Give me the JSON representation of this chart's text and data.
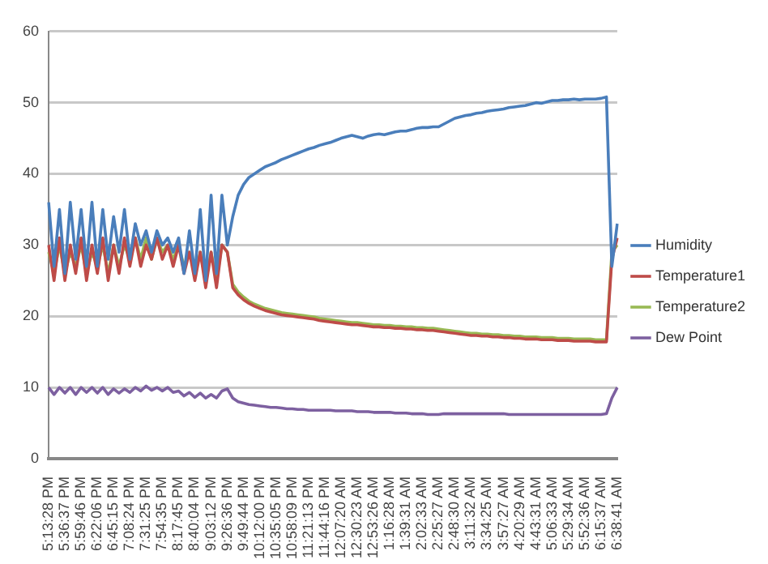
{
  "chart_data": {
    "type": "line",
    "categories": [
      "5:13:28 PM",
      null,
      null,
      "5:36:37 PM",
      null,
      null,
      "5:59:46 PM",
      null,
      null,
      "6:22:06 PM",
      null,
      null,
      "6:45:15 PM",
      null,
      null,
      "7:08:24 PM",
      null,
      null,
      "7:31:25 PM",
      null,
      null,
      "7:54:35 PM",
      null,
      null,
      "8:17:45 PM",
      null,
      null,
      "8:40:04 PM",
      null,
      null,
      "9:03:12 PM",
      null,
      null,
      "9:26:36 PM",
      null,
      null,
      "9:49:44 PM",
      null,
      null,
      "10:12:00 PM",
      null,
      null,
      "10:35:05 PM",
      null,
      null,
      "10:58:09 PM",
      null,
      null,
      "11:21:13 PM",
      null,
      null,
      "11:44:16 PM",
      null,
      null,
      "12:07:20 AM",
      null,
      null,
      "12:30:23 AM",
      null,
      null,
      "12:53:26 AM",
      null,
      null,
      "1:16:28 AM",
      null,
      null,
      "1:39:31 AM",
      null,
      null,
      "2:02:33 AM",
      null,
      null,
      "2:25:27 AM",
      null,
      null,
      "2:48:30 AM",
      null,
      null,
      "3:11:32 AM",
      null,
      null,
      "3:34:25 AM",
      null,
      null,
      "3:57:27 AM",
      null,
      null,
      "4:20:29 AM",
      null,
      null,
      "4:43:31 AM",
      null,
      null,
      "5:06:33 AM",
      null,
      null,
      "5:29:34 AM",
      null,
      null,
      "5:52:36 AM",
      null,
      null,
      "6:15:37 AM",
      null,
      null,
      "6:38:41 AM"
    ],
    "series": [
      {
        "name": "Humidity",
        "color": "#4a7ebb",
        "values": [
          36,
          27,
          35,
          26,
          36,
          28,
          35,
          27,
          36,
          27,
          35,
          28,
          34,
          29,
          35,
          28,
          33,
          30,
          32,
          29,
          32,
          30,
          31,
          29,
          31,
          26,
          32,
          26,
          35,
          25,
          37,
          26,
          37,
          30,
          34,
          37,
          38.5,
          39.5,
          40,
          40.5,
          41,
          41.3,
          41.6,
          42,
          42.3,
          42.6,
          42.9,
          43.2,
          43.5,
          43.7,
          44,
          44.2,
          44.4,
          44.7,
          45,
          45.2,
          45.4,
          45.2,
          45,
          45.3,
          45.5,
          45.6,
          45.5,
          45.7,
          45.9,
          46,
          46,
          46.2,
          46.4,
          46.5,
          46.5,
          46.6,
          46.6,
          47,
          47.4,
          47.8,
          48,
          48.2,
          48.3,
          48.5,
          48.6,
          48.8,
          48.9,
          49,
          49.1,
          49.3,
          49.4,
          49.5,
          49.6,
          49.8,
          50,
          49.9,
          50.1,
          50.3,
          50.3,
          50.4,
          50.4,
          50.5,
          50.4,
          50.5,
          50.5,
          50.5,
          50.6,
          50.8,
          27,
          33
        ]
      },
      {
        "name": "Temperature1",
        "color": "#be4b48",
        "values": [
          30,
          25,
          31,
          25,
          30,
          26,
          31,
          25,
          30,
          26,
          31,
          25,
          30,
          26,
          31,
          27,
          31,
          27,
          30,
          28,
          31,
          28,
          30,
          27,
          30,
          26,
          29,
          25,
          29,
          24,
          29,
          24,
          30,
          29,
          24,
          23,
          22.3,
          21.8,
          21.4,
          21.1,
          20.8,
          20.6,
          20.4,
          20.2,
          20.1,
          20,
          19.9,
          19.8,
          19.7,
          19.6,
          19.4,
          19.3,
          19.2,
          19.1,
          19,
          18.9,
          18.8,
          18.8,
          18.7,
          18.6,
          18.5,
          18.5,
          18.4,
          18.4,
          18.3,
          18.3,
          18.2,
          18.2,
          18.1,
          18.1,
          18,
          18,
          17.9,
          17.8,
          17.7,
          17.6,
          17.5,
          17.4,
          17.3,
          17.3,
          17.2,
          17.2,
          17.1,
          17.1,
          17,
          17,
          16.9,
          16.9,
          16.8,
          16.8,
          16.8,
          16.7,
          16.7,
          16.7,
          16.6,
          16.6,
          16.6,
          16.5,
          16.5,
          16.5,
          16.5,
          16.4,
          16.4,
          16.4,
          28,
          31
        ]
      },
      {
        "name": "Temperature2",
        "color": "#98b954",
        "values": [
          29,
          26,
          30,
          26,
          29,
          27,
          30,
          26,
          29,
          27,
          30,
          26,
          30,
          27,
          30,
          28,
          31,
          28,
          31,
          28,
          31,
          29,
          30,
          28,
          30,
          27,
          29,
          26,
          29,
          25,
          29,
          25,
          30,
          29,
          24.5,
          23.4,
          22.7,
          22.1,
          21.7,
          21.4,
          21.1,
          20.9,
          20.7,
          20.5,
          20.4,
          20.3,
          20.2,
          20.1,
          20,
          19.9,
          19.7,
          19.6,
          19.5,
          19.4,
          19.3,
          19.2,
          19.1,
          19.1,
          19,
          18.9,
          18.8,
          18.8,
          18.7,
          18.7,
          18.6,
          18.6,
          18.5,
          18.5,
          18.4,
          18.4,
          18.3,
          18.3,
          18.2,
          18.1,
          18,
          17.9,
          17.8,
          17.7,
          17.6,
          17.6,
          17.5,
          17.5,
          17.4,
          17.4,
          17.3,
          17.3,
          17.2,
          17.2,
          17.1,
          17.1,
          17.1,
          17,
          17,
          17,
          16.9,
          16.9,
          16.9,
          16.8,
          16.8,
          16.8,
          16.8,
          16.7,
          16.7,
          16.7,
          29,
          30
        ]
      },
      {
        "name": "Dew Point",
        "color": "#7d60a0",
        "values": [
          10,
          9,
          10,
          9.2,
          10,
          9,
          10,
          9.3,
          10,
          9.2,
          10,
          9,
          9.8,
          9.2,
          9.8,
          9.3,
          10,
          9.5,
          10.2,
          9.6,
          10,
          9.5,
          10,
          9.3,
          9.5,
          8.8,
          9.3,
          8.6,
          9.2,
          8.5,
          9,
          8.5,
          9.5,
          9.8,
          8.5,
          8,
          7.8,
          7.6,
          7.5,
          7.4,
          7.3,
          7.2,
          7.2,
          7.1,
          7,
          7,
          6.9,
          6.9,
          6.8,
          6.8,
          6.8,
          6.8,
          6.8,
          6.7,
          6.7,
          6.7,
          6.7,
          6.6,
          6.6,
          6.6,
          6.5,
          6.5,
          6.5,
          6.5,
          6.4,
          6.4,
          6.4,
          6.3,
          6.3,
          6.3,
          6.2,
          6.2,
          6.2,
          6.3,
          6.3,
          6.3,
          6.3,
          6.3,
          6.3,
          6.3,
          6.3,
          6.3,
          6.3,
          6.3,
          6.3,
          6.2,
          6.2,
          6.2,
          6.2,
          6.2,
          6.2,
          6.2,
          6.2,
          6.2,
          6.2,
          6.2,
          6.2,
          6.2,
          6.2,
          6.2,
          6.2,
          6.2,
          6.2,
          6.3,
          8.5,
          10
        ]
      }
    ],
    "ylim": [
      0,
      60
    ],
    "yticks": [
      0,
      10,
      20,
      30,
      40,
      50,
      60
    ],
    "grid": "y",
    "legend": "right",
    "marker": "none",
    "line_style": "solid"
  }
}
